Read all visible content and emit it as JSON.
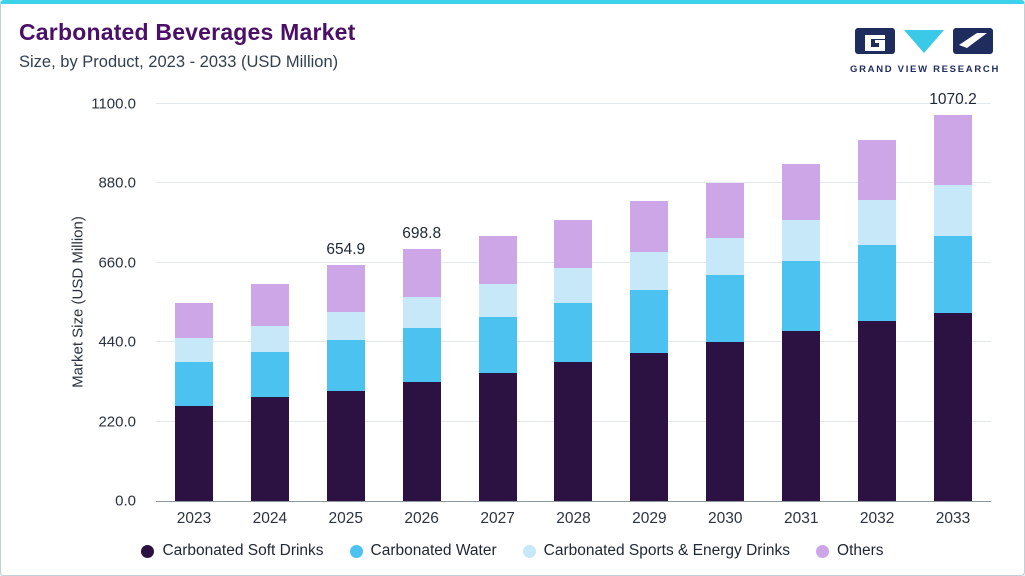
{
  "page": {
    "title": "Carbonated Beverages Market",
    "subtitle": "Size, by Product, 2023 - 2033 (USD Million)"
  },
  "logo": {
    "text": "GRAND VIEW RESEARCH",
    "navy": "#1e2c5e",
    "cyan": "#3bc9e8"
  },
  "colors": {
    "accent_top_border": "#3bd3ea",
    "title_purple": "#4b0f67",
    "subtitle_gray": "#323f4f",
    "gridline": "#e4e9ee",
    "axis_line": "#8d959d",
    "tick_text": "#2b3340"
  },
  "chart_data": {
    "type": "bar",
    "stacked": true,
    "title": "Carbonated Beverages Market Size, by Product, 2023 - 2033 (USD Million)",
    "xlabel": "",
    "ylabel": "Market Size (USD Million)",
    "ylim": [
      0,
      1100
    ],
    "grid": true,
    "legend_position": "bottom",
    "yticks": [
      {
        "value": 0,
        "label": "0.0"
      },
      {
        "value": 220,
        "label": "220.0"
      },
      {
        "value": 440,
        "label": "440.0"
      },
      {
        "value": 660,
        "label": "660.0"
      },
      {
        "value": 880,
        "label": "880.0"
      },
      {
        "value": 1100,
        "label": "1100.0"
      }
    ],
    "categories": [
      "2023",
      "2024",
      "2025",
      "2026",
      "2027",
      "2028",
      "2029",
      "2030",
      "2031",
      "2032",
      "2033"
    ],
    "series": [
      {
        "name": "Carbonated Soft Drinks",
        "color": "#2b1242",
        "values": [
          264,
          288,
          305,
          330,
          355,
          385,
          410,
          440,
          470,
          500,
          520
        ]
      },
      {
        "name": "Carbonated Water",
        "color": "#4cc2f1",
        "values": [
          121,
          126,
          140,
          150,
          155,
          165,
          175,
          185,
          195,
          210,
          215
        ]
      },
      {
        "name": "Carbonated Sports & Energy Drinks",
        "color": "#c6e8f8",
        "values": [
          66,
          72,
          80,
          85,
          90,
          95,
          105,
          105,
          115,
          125,
          140
        ]
      },
      {
        "name": "Others",
        "color": "#cda6e8",
        "values": [
          99,
          114,
          129.9,
          133.8,
          135,
          135,
          140,
          150,
          155,
          165,
          195.2
        ]
      }
    ],
    "totals": [
      550,
      600,
      654.9,
      698.8,
      735,
      780,
      830,
      880,
      935,
      1000,
      1070.2
    ],
    "bar_labels": [
      "",
      "",
      "654.9",
      "698.8",
      "",
      "",
      "",
      "",
      "",
      "",
      "1070.2"
    ]
  }
}
